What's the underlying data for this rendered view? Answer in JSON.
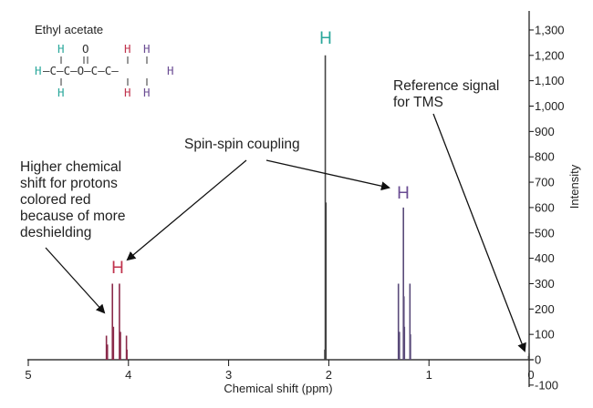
{
  "chart_data": {
    "type": "line",
    "title": "",
    "xlabel": "Chemical shift (ppm)",
    "ylabel": "Intensity",
    "xlim": [
      5,
      0
    ],
    "ylim": [
      -100,
      1300
    ],
    "x_ticks": [
      5,
      4,
      3,
      2,
      1,
      0
    ],
    "y_ticks": [
      1300,
      1200,
      1100,
      1000,
      900,
      800,
      700,
      600,
      500,
      400,
      300,
      200,
      100,
      0,
      -100
    ],
    "y_tick_labels": [
      "1,300",
      "1,200",
      "1,100",
      "1,000",
      "900",
      "800",
      "700",
      "600",
      "500",
      "400",
      "300",
      "200",
      "100",
      "0",
      "-100"
    ],
    "x_tick_labels": [
      "5",
      "4",
      "3",
      "2",
      "1",
      "0"
    ],
    "grid": false,
    "peaks": [
      {
        "group": "quartet",
        "color": "#8a2a4a",
        "label": "H",
        "label_color": "#c0334d",
        "lines": [
          {
            "x": 4.22,
            "y": 95
          },
          {
            "x": 4.21,
            "y": 60
          },
          {
            "x": 4.16,
            "y": 300
          },
          {
            "x": 4.15,
            "y": 130
          },
          {
            "x": 4.09,
            "y": 300
          },
          {
            "x": 4.08,
            "y": 110
          },
          {
            "x": 4.02,
            "y": 95
          },
          {
            "x": 4.015,
            "y": 40
          }
        ]
      },
      {
        "group": "singlet",
        "color": "#444444",
        "label": "H",
        "label_color": "#2aa79b",
        "lines": [
          {
            "x": 2.035,
            "y": 1200
          },
          {
            "x": 2.028,
            "y": 620
          },
          {
            "x": 2.04,
            "y": 40
          }
        ]
      },
      {
        "group": "triplet",
        "color": "#5a4b7a",
        "label": "H",
        "label_color": "#6a4c93",
        "lines": [
          {
            "x": 1.305,
            "y": 300
          },
          {
            "x": 1.295,
            "y": 110
          },
          {
            "x": 1.255,
            "y": 600
          },
          {
            "x": 1.25,
            "y": 250
          },
          {
            "x": 1.245,
            "y": 130
          },
          {
            "x": 1.19,
            "y": 300
          },
          {
            "x": 1.185,
            "y": 100
          }
        ]
      },
      {
        "group": "tms",
        "color": "#444444",
        "label": "",
        "label_color": "#444444",
        "lines": [
          {
            "x": 0.0,
            "y": 25
          },
          {
            "x": 0.005,
            "y": 15
          }
        ]
      }
    ],
    "annotations": [
      {
        "id": "shift-note",
        "lines": [
          "Higher chemical",
          "shift for protons",
          "colored red",
          "because of more",
          "deshielding"
        ]
      },
      {
        "id": "coupling-note",
        "lines": [
          "Spin-spin coupling"
        ]
      },
      {
        "id": "reference-note",
        "lines": [
          "Reference signal",
          "for TMS"
        ]
      }
    ],
    "molecule": {
      "title": "Ethyl acetate",
      "rows": [
        [
          {
            "t": "H",
            "c": "#2aa79b"
          },
          {
            "t": " O   ",
            "c": "#333"
          },
          {
            "t": "H",
            "c": "#c0334d"
          },
          {
            "t": " ",
            "c": "#333"
          },
          {
            "t": "H",
            "c": "#6a4c93"
          }
        ],
        [
          {
            "t": "H",
            "c": "#2aa79b"
          },
          {
            "t": "-C-C-O-C-C-",
            "c": "#333"
          },
          {
            "t": "H",
            "c": "#6a4c93"
          }
        ],
        [
          {
            "t": "H",
            "c": "#2aa79b"
          },
          {
            "t": "     ",
            "c": "#333"
          },
          {
            "t": "H",
            "c": "#c0334d"
          },
          {
            "t": " ",
            "c": "#333"
          },
          {
            "t": "H",
            "c": "#6a4c93"
          }
        ]
      ]
    }
  }
}
